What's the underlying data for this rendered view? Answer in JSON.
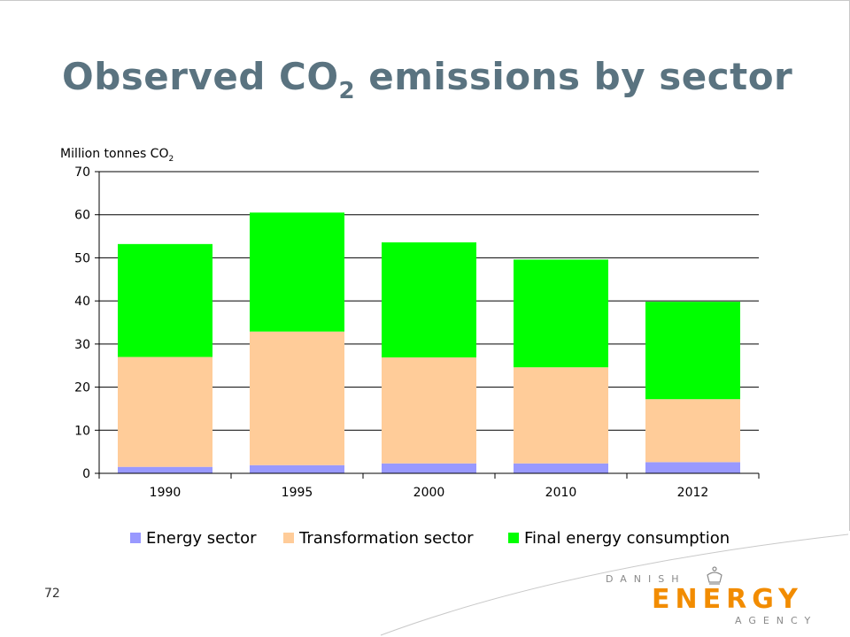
{
  "slide": {
    "title_main": "Observed CO",
    "title_sub": "2",
    "title_rest": " emissions by sector",
    "page_number": "72"
  },
  "logo": {
    "top": "DANISH",
    "middle": "ENERGY",
    "bottom": "AGENCY",
    "accent_color": "#f28c00"
  },
  "chart_data": {
    "type": "bar",
    "stacked": true,
    "ylabel": "Million tonnes CO",
    "ylabel_sub": "2",
    "categories": [
      "1990",
      "1995",
      "2000",
      "2010",
      "2012"
    ],
    "ylim": [
      0,
      70
    ],
    "yticks": [
      "0",
      "10",
      "20",
      "30",
      "40",
      "50",
      "60",
      "70"
    ],
    "grid": true,
    "legend_position": "bottom",
    "series": [
      {
        "name": "Energy sector",
        "color": "#9999ff",
        "values": [
          1.5,
          1.9,
          2.3,
          2.3,
          2.6
        ]
      },
      {
        "name": "Transformation sector",
        "color": "#ffcc99",
        "values": [
          25.5,
          31.0,
          24.6,
          22.3,
          14.6
        ]
      },
      {
        "name": "Final energy consumption",
        "color": "#00ff00",
        "values": [
          26.2,
          27.6,
          26.7,
          25.0,
          22.6
        ]
      }
    ]
  }
}
